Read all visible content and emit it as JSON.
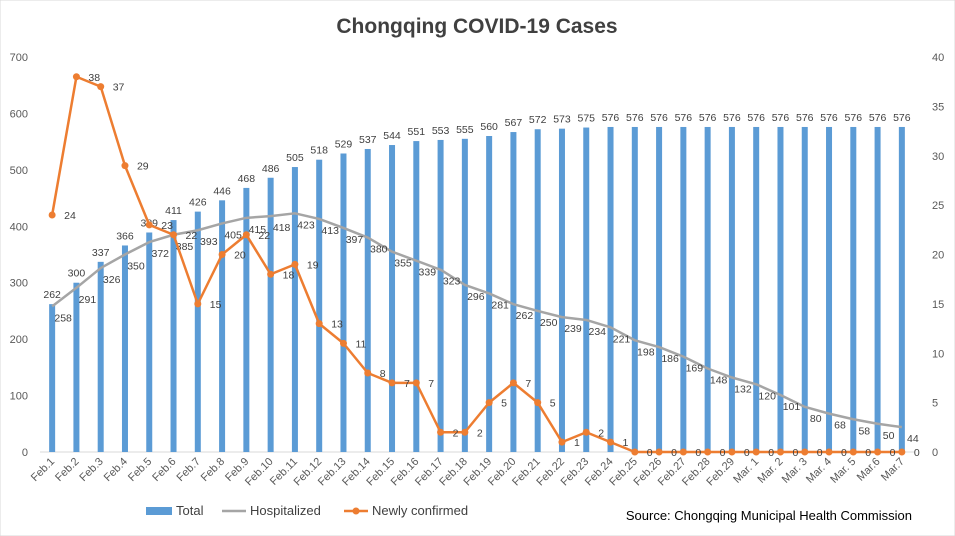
{
  "chart_data": {
    "type": "bar",
    "title": "Chongqing COVID-19 Cases",
    "source": "Source: Chongqing Municipal Health Commission",
    "categories": [
      "Feb.1",
      "Feb.2",
      "Feb.3",
      "Feb.4",
      "Feb.5",
      "Feb.6",
      "Feb.7",
      "Feb.8",
      "Feb.9",
      "Feb.10",
      "Feb.11",
      "Feb.12",
      "Feb.13",
      "Feb.14",
      "Feb.15",
      "Feb.16",
      "Feb.17",
      "Feb.18",
      "Feb.19",
      "Feb.20",
      "Feb.21",
      "Feb.22",
      "Feb.23",
      "Feb.24",
      "Feb.25",
      "Feb.26",
      "Feb.27",
      "Feb.28",
      "Feb.29",
      "Mar. 1",
      "Mar. 2",
      "Mar. 3",
      "Mar. 4",
      "Mar. 5",
      "Mar.6",
      "Mar.7"
    ],
    "series": [
      {
        "name": "Total",
        "type": "bar",
        "axis": "left",
        "color": "#5b9bd5",
        "values": [
          262,
          300,
          337,
          366,
          389,
          411,
          426,
          446,
          468,
          486,
          505,
          518,
          529,
          537,
          544,
          551,
          553,
          555,
          560,
          567,
          572,
          573,
          575,
          576,
          576,
          576,
          576,
          576,
          576,
          576,
          576,
          576,
          576,
          576,
          576,
          576
        ]
      },
      {
        "name": "Hospitalized",
        "type": "line",
        "axis": "left",
        "color": "#a5a5a5",
        "values": [
          258,
          291,
          326,
          350,
          372,
          385,
          393,
          405,
          415,
          418,
          423,
          413,
          397,
          380,
          355,
          339,
          323,
          296,
          281,
          262,
          250,
          239,
          234,
          221,
          198,
          186,
          169,
          148,
          132,
          120,
          101,
          80,
          68,
          58,
          50,
          44
        ]
      },
      {
        "name": "Newly confirmed",
        "type": "line",
        "axis": "right",
        "color": "#ed7d31",
        "values": [
          24,
          38,
          37,
          29,
          23,
          22,
          15,
          20,
          22,
          18,
          19,
          13,
          11,
          8,
          7,
          7,
          2,
          2,
          5,
          7,
          5,
          1,
          2,
          1,
          0,
          0,
          0,
          0,
          0,
          0,
          0,
          0,
          0,
          0,
          0,
          0
        ]
      }
    ],
    "y_left": {
      "min": 0,
      "max": 700,
      "ticks": [
        0,
        100,
        200,
        300,
        400,
        500,
        600,
        700
      ]
    },
    "y_right": {
      "min": 0,
      "max": 40,
      "ticks": [
        0,
        5,
        10,
        15,
        20,
        25,
        30,
        35,
        40
      ]
    },
    "grid": false,
    "legend_position": "bottom-left"
  }
}
